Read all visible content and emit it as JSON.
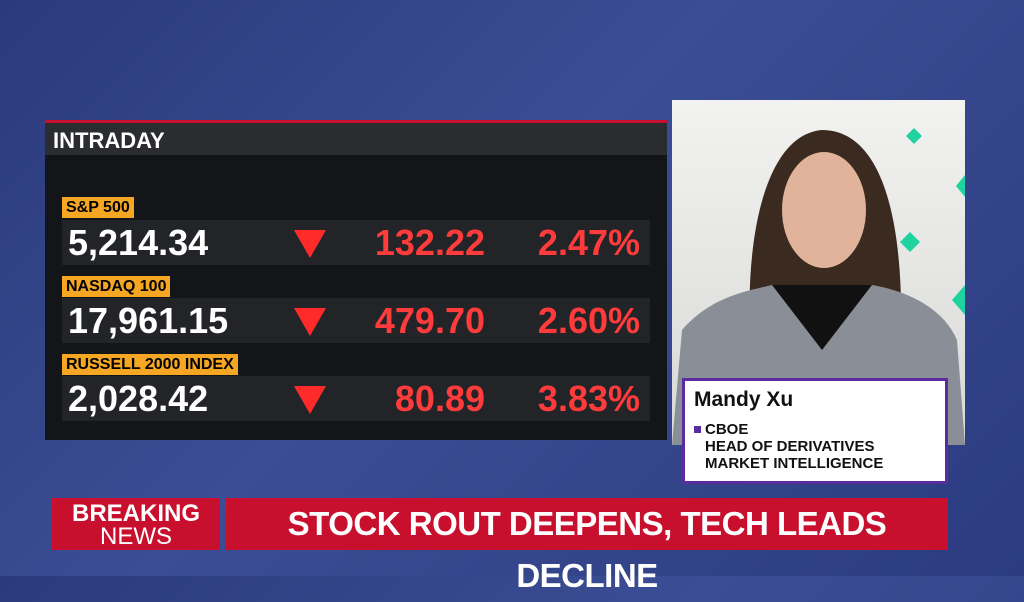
{
  "panel": {
    "title": "INTRADAY",
    "rows": [
      {
        "name": "S&P 500",
        "price": "5,214.34",
        "change": "132.22",
        "percent": "2.47%"
      },
      {
        "name": "NASDAQ 100",
        "price": "17,961.15",
        "change": "479.70",
        "percent": "2.60%"
      },
      {
        "name": "RUSSELL 2000 INDEX",
        "price": "2,028.42",
        "change": "80.89",
        "percent": "3.83%"
      }
    ]
  },
  "guest": {
    "name": "Mandy Xu",
    "organization": "CBOE",
    "title_lines": [
      "HEAD OF DERIVATIVES",
      "MARKET INTELLIGENCE"
    ]
  },
  "ticker": {
    "label_lines": [
      "BREAKING",
      "NEWS"
    ],
    "headline": "STOCK ROUT DEEPENS, TECH LEADS DECLINE"
  }
}
